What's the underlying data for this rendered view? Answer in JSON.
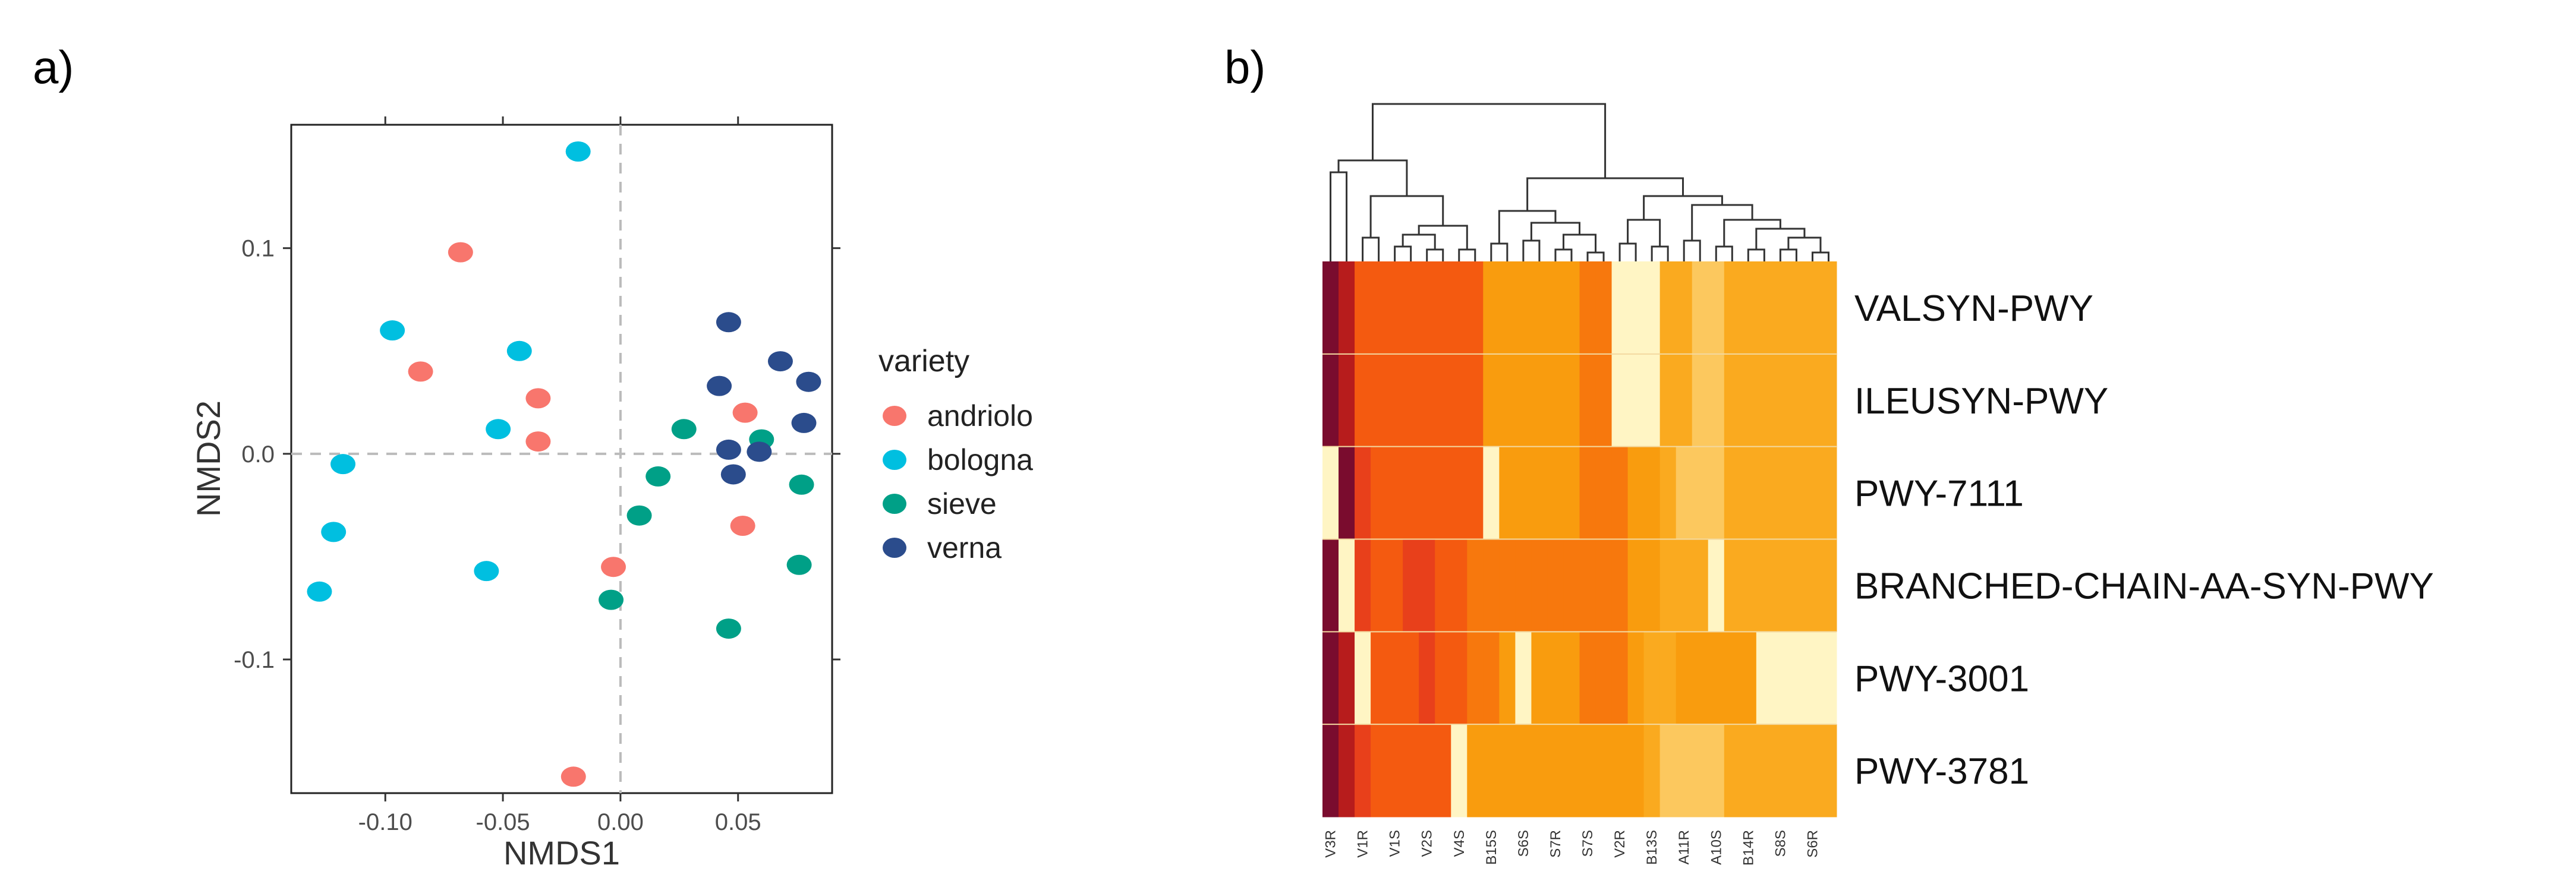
{
  "chart_data": [
    {
      "panel": "a)",
      "type": "scatter",
      "xlabel": "NMDS1",
      "ylabel": "NMDS2",
      "xlim": [
        -0.14,
        0.09
      ],
      "ylim": [
        -0.165,
        0.16
      ],
      "xticks": [
        -0.1,
        -0.05,
        0.0,
        0.05
      ],
      "xtick_labels": [
        "-0.10",
        "-0.05",
        "0.00",
        "0.05"
      ],
      "yticks": [
        0.1,
        0.0,
        -0.1
      ],
      "ytick_labels": [
        "0.1",
        "0.0",
        "-0.1"
      ],
      "reference_lines": {
        "x": 0,
        "y": 0
      },
      "legend": {
        "title": "variety",
        "position": "right"
      },
      "series": [
        {
          "name": "andriolo",
          "color": "#F8766D",
          "points": [
            [
              -0.068,
              0.098
            ],
            [
              -0.085,
              0.04
            ],
            [
              -0.035,
              0.027
            ],
            [
              -0.035,
              0.006
            ],
            [
              0.053,
              0.02
            ],
            [
              0.052,
              -0.035
            ],
            [
              -0.003,
              -0.055
            ],
            [
              -0.02,
              -0.157
            ]
          ]
        },
        {
          "name": "bologna",
          "color": "#00BFE0",
          "points": [
            [
              -0.018,
              0.147
            ],
            [
              -0.097,
              0.06
            ],
            [
              -0.043,
              0.05
            ],
            [
              -0.052,
              0.012
            ],
            [
              -0.118,
              -0.005
            ],
            [
              -0.122,
              -0.038
            ],
            [
              -0.128,
              -0.067
            ],
            [
              -0.057,
              -0.057
            ]
          ]
        },
        {
          "name": "sieve",
          "color": "#00A087",
          "points": [
            [
              0.027,
              0.012
            ],
            [
              0.06,
              0.007
            ],
            [
              0.016,
              -0.011
            ],
            [
              0.008,
              -0.03
            ],
            [
              -0.004,
              -0.071
            ],
            [
              0.077,
              -0.015
            ],
            [
              0.076,
              -0.054
            ],
            [
              0.046,
              -0.085
            ]
          ]
        },
        {
          "name": "verna",
          "color": "#2B4C8C",
          "points": [
            [
              0.046,
              0.064
            ],
            [
              0.068,
              0.045
            ],
            [
              0.08,
              0.035
            ],
            [
              0.042,
              0.033
            ],
            [
              0.046,
              0.002
            ],
            [
              0.059,
              0.001
            ],
            [
              0.078,
              0.015
            ],
            [
              0.048,
              -0.01
            ]
          ]
        }
      ]
    },
    {
      "panel": "b)",
      "type": "heatmap",
      "rows": [
        "VALSYN-PWY",
        "ILEUSYN-PWY",
        "PWY-7111",
        "BRANCHED-CHAIN-AA-SYN-PWY",
        "PWY-3001",
        "PWY-3781"
      ],
      "columns": [
        "V3R",
        "",
        "V1R",
        "",
        "V1S",
        "",
        "V2S",
        "",
        "V4S",
        "",
        "B15S",
        "",
        "S6S",
        "",
        "S7R",
        "",
        "S7S",
        "",
        "V2R",
        "",
        "B13S",
        "",
        "A11R",
        "",
        "A10S",
        "",
        "B14R",
        "",
        "S8S",
        "",
        "S6R",
        ""
      ],
      "values": [
        [
          1,
          2,
          4,
          4,
          4,
          4,
          4,
          4,
          4,
          4,
          6,
          6,
          6,
          6,
          6,
          6,
          5,
          5,
          9,
          9,
          9,
          7,
          7,
          8,
          8,
          7,
          7,
          7,
          7,
          7,
          7,
          7
        ],
        [
          1,
          2,
          4,
          4,
          4,
          4,
          4,
          4,
          4,
          4,
          6,
          6,
          6,
          6,
          6,
          6,
          5,
          5,
          9,
          9,
          9,
          7,
          7,
          8,
          8,
          7,
          7,
          7,
          7,
          7,
          7,
          7
        ],
        [
          9,
          1,
          3,
          4,
          4,
          4,
          4,
          4,
          4,
          4,
          9,
          6,
          6,
          6,
          6,
          6,
          5,
          5,
          5,
          6,
          6,
          7,
          8,
          8,
          8,
          7,
          7,
          7,
          7,
          7,
          7,
          7
        ],
        [
          1,
          9,
          3,
          4,
          4,
          3,
          3,
          4,
          4,
          5,
          5,
          5,
          5,
          5,
          5,
          5,
          5,
          5,
          5,
          6,
          6,
          7,
          7,
          7,
          9,
          7,
          7,
          7,
          7,
          7,
          7,
          7
        ],
        [
          1,
          2,
          9,
          4,
          4,
          4,
          3,
          4,
          4,
          5,
          5,
          6,
          9,
          6,
          6,
          6,
          5,
          5,
          5,
          6,
          7,
          7,
          6,
          6,
          6,
          6,
          6,
          9,
          9,
          9,
          9,
          9
        ],
        [
          1,
          2,
          3,
          4,
          4,
          4,
          4,
          4,
          9,
          6,
          6,
          6,
          6,
          6,
          6,
          6,
          6,
          6,
          6,
          6,
          7,
          8,
          8,
          8,
          8,
          7,
          7,
          7,
          7,
          7,
          7,
          7
        ]
      ],
      "dendrogram": "column clustering tree above heatmap"
    }
  ],
  "palette": {
    "heat_scale": [
      "#7A0C2E",
      "#B71C1C",
      "#E8401B",
      "#F45A10",
      "#F7780D",
      "#F99C0E",
      "#FAAA1F",
      "#FCC85E",
      "#FFF5C4"
    ]
  }
}
